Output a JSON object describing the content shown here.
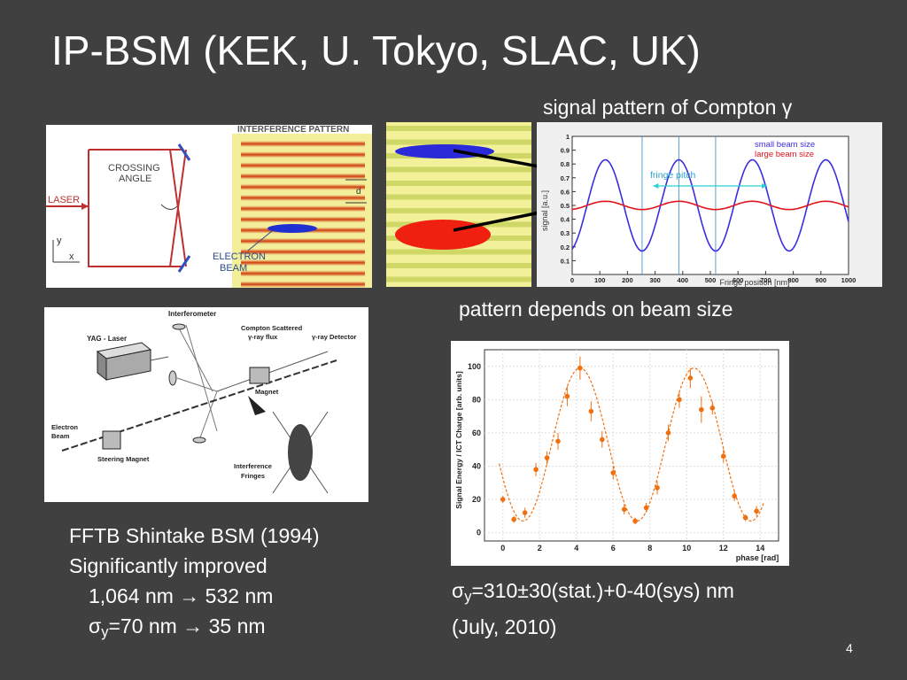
{
  "slide": {
    "title": "IP-BSM (KEK, U. Tokyo, SLAC, UK)",
    "page_number": "4"
  },
  "captions": {
    "compton_signal": "signal pattern of Compton γ",
    "pattern_depends": "pattern depends on beam size"
  },
  "fig_interference": {
    "header": "INTERFERENCE PATTERN",
    "crossing_angle_1": "CROSSING",
    "crossing_angle_2": "ANGLE",
    "laser": "LASER",
    "electron_1": "ELECTRON",
    "electron_2": "BEAM",
    "d_label": "d",
    "axis_y": "y",
    "axis_x": "x"
  },
  "fig_fftb": {
    "interferometer": "Interferometer",
    "yag": "YAG - Laser",
    "compton_1": "Compton Scattered",
    "compton_2": "γ-ray flux",
    "detector": "γ-ray Detector",
    "magnet": "Magnet",
    "electron_1": "Electron",
    "electron_2": "Beam",
    "steering": "Steering Magnet",
    "fringes_1": "Interference",
    "fringes_2": "Fringes"
  },
  "chart_data": [
    {
      "type": "line",
      "ylabel": "signal [a.u.]",
      "xlabel": "Fringe position [nm]",
      "xlim": [
        0,
        1000
      ],
      "ylim": [
        0,
        1
      ],
      "x_ticks": [
        0,
        100,
        200,
        300,
        400,
        500,
        600,
        700,
        800,
        900,
        1000
      ],
      "y_ticks": [
        0.1,
        0.2,
        0.3,
        0.4,
        0.5,
        0.6,
        0.7,
        0.8,
        0.9,
        1
      ],
      "annotation": "fringe pitch",
      "legend_position": "top-right",
      "series": [
        {
          "name": "small beam size",
          "color": "#3b2ee0",
          "mean": 0.5,
          "amplitude": 0.33,
          "period": 266,
          "phase_peak_x": 120
        },
        {
          "name": "large beam size",
          "color": "#e0141a",
          "mean": 0.5,
          "amplitude": 0.03,
          "period": 266,
          "phase_peak_x": 120
        }
      ]
    },
    {
      "type": "scatter",
      "ylabel": "Signal Energy / ICT Charge [arb. units]",
      "xlabel": "phase [rad]",
      "xlim": [
        -1,
        15
      ],
      "ylim": [
        -5,
        110
      ],
      "x_ticks": [
        0,
        2,
        4,
        6,
        8,
        10,
        12,
        14
      ],
      "y_ticks": [
        0,
        20,
        40,
        60,
        80,
        100
      ],
      "series": [
        {
          "name": "",
          "color": "#f07010",
          "x": [
            0.0,
            0.6,
            1.2,
            1.8,
            2.4,
            3.0,
            3.5,
            4.2,
            4.8,
            5.4,
            6.0,
            6.6,
            7.2,
            7.8,
            8.4,
            9.0,
            9.6,
            10.2,
            10.8,
            11.4,
            12.0,
            12.6,
            13.2,
            13.8
          ],
          "y": [
            20,
            8,
            12,
            38,
            45,
            55,
            82,
            99,
            73,
            56,
            36,
            14,
            7,
            15,
            27,
            60,
            80,
            93,
            74,
            75,
            46,
            22,
            9,
            13
          ],
          "err": [
            2,
            2,
            3,
            4,
            4,
            5,
            6,
            7,
            6,
            5,
            4,
            3,
            2,
            3,
            4,
            5,
            5,
            6,
            8,
            4,
            4,
            3,
            2,
            3
          ],
          "fit_mean": 53,
          "fit_amplitude": 46,
          "fit_period": 6.2,
          "fit_peak_x": 4.2
        }
      ]
    }
  ],
  "notes": {
    "fftb_line1": "FFTB Shintake BSM (1994)",
    "fftb_line2": "Significantly improved",
    "fftb_line3": "1,064 nm → 532 nm",
    "fftb_sigma": "σ",
    "fftb_sub": "y",
    "fftb_line4_rest": "=70 nm → 35 nm",
    "result_sigma": "σ",
    "result_sub": "y",
    "result_rest": "=310±30(stat.)+0-40(sys) nm",
    "result_date": "(July, 2010)"
  }
}
